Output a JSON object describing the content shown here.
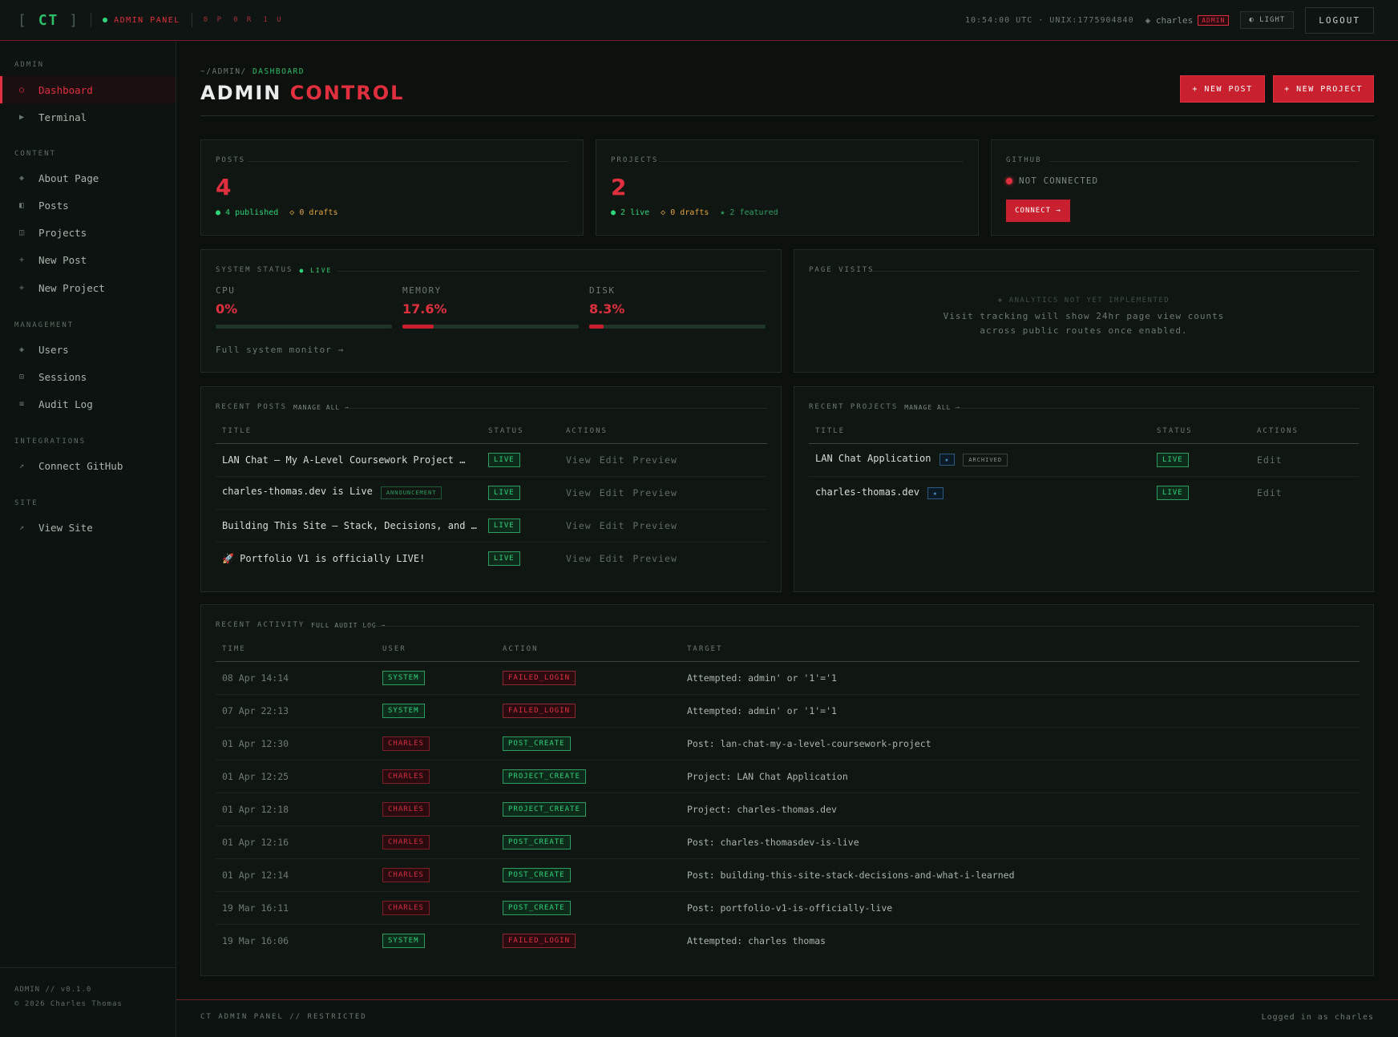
{
  "topbar": {
    "logo_open": "[",
    "logo": "CT",
    "logo_close": "]",
    "admin_panel": "ADMIN PANEL",
    "counts": [
      "0 P",
      "0 R",
      "1 U"
    ],
    "clock": "10:54:00 UTC · UNIX:1775904840",
    "user": "◈ charles",
    "admin_tag": "ADMIN",
    "light_label": "◐ LIGHT",
    "logout_label": "LOGOUT"
  },
  "sidebar": {
    "groups": {
      "admin": "ADMIN",
      "content": "CONTENT",
      "management": "MANAGEMENT",
      "integrations": "INTEGRATIONS",
      "site": "SITE"
    },
    "items": {
      "dashboard": "Dashboard",
      "terminal": "Terminal",
      "about": "About Page",
      "posts": "Posts",
      "projects": "Projects",
      "new_post": "New Post",
      "new_project": "New Project",
      "users": "Users",
      "sessions": "Sessions",
      "audit": "Audit Log",
      "github": "Connect GitHub",
      "view_site": "View Site"
    },
    "footer_version": "ADMIN // v0.1.0",
    "footer_copy": "© 2026 Charles Thomas"
  },
  "header": {
    "breadcrumb_prefix": "~/ADMIN/",
    "breadcrumb_current": "DASHBOARD",
    "title_a": "ADMIN",
    "title_b": "CONTROL",
    "new_post": "+ NEW POST",
    "new_project": "+ NEW PROJECT"
  },
  "stats": {
    "posts_label": "POSTS",
    "posts_value": "4",
    "posts_published": "● 4 published",
    "posts_drafts": "◇ 0 drafts",
    "projects_label": "PROJECTS",
    "projects_value": "2",
    "projects_live": "● 2 live",
    "projects_drafts": "◇ 0 drafts",
    "projects_featured": "★ 2 featured",
    "github_label": "GITHUB",
    "github_status": "NOT CONNECTED",
    "github_connect": "CONNECT →"
  },
  "system": {
    "label": "SYSTEM STATUS",
    "live": "● LIVE",
    "cpu_label": "CPU",
    "cpu_value": "0%",
    "cpu_pct": 0,
    "mem_label": "MEMORY",
    "mem_value": "17.6%",
    "mem_pct": 17.6,
    "disk_label": "DISK",
    "disk_value": "8.3%",
    "disk_pct": 8.3,
    "monitor_link": "Full system monitor →"
  },
  "visits": {
    "label": "PAGE VISITS",
    "line1": "◈ ANALYTICS NOT YET IMPLEMENTED",
    "line2": "Visit tracking will show 24hr page view counts",
    "line3": "across public routes once enabled."
  },
  "recent_posts": {
    "label": "RECENT POSTS",
    "manage": "MANAGE ALL →",
    "headers": [
      "TITLE",
      "STATUS",
      "ACTIONS"
    ],
    "rows": [
      {
        "title": "LAN Chat — My A-Level Coursework Project …",
        "badge": "",
        "status": "LIVE"
      },
      {
        "title": "charles-thomas.dev is Live",
        "badge": "ANNOUNCEMENT",
        "status": "LIVE"
      },
      {
        "title": "Building This Site — Stack, Decisions, and …",
        "badge": "",
        "status": "LIVE"
      },
      {
        "title": "🚀 Portfolio V1 is officially LIVE!",
        "badge": "",
        "status": "LIVE"
      }
    ],
    "actions": [
      "View",
      "Edit",
      "Preview"
    ]
  },
  "recent_projects": {
    "label": "RECENT PROJECTS",
    "manage": "MANAGE ALL →",
    "headers": [
      "TITLE",
      "STATUS",
      "ACTIONS"
    ],
    "rows": [
      {
        "title": "LAN Chat Application",
        "star": "★",
        "badge": "ARCHIVED",
        "status": "LIVE",
        "action": "Edit"
      },
      {
        "title": "charles-thomas.dev",
        "star": "★",
        "badge": "",
        "status": "LIVE",
        "action": "Edit"
      }
    ]
  },
  "activity": {
    "label": "RECENT ACTIVITY",
    "link": "FULL AUDIT LOG →",
    "headers": [
      "TIME",
      "USER",
      "ACTION",
      "TARGET"
    ],
    "rows": [
      {
        "time": "08 Apr 14:14",
        "user": "SYSTEM",
        "action": "FAILED_LOGIN",
        "target": "Attempted: admin' or '1'='1"
      },
      {
        "time": "07 Apr 22:13",
        "user": "SYSTEM",
        "action": "FAILED_LOGIN",
        "target": "Attempted: admin' or '1'='1"
      },
      {
        "time": "01 Apr 12:30",
        "user": "CHARLES",
        "action": "POST_CREATE",
        "target": "Post: lan-chat-my-a-level-coursework-project"
      },
      {
        "time": "01 Apr 12:25",
        "user": "CHARLES",
        "action": "PROJECT_CREATE",
        "target": "Project: LAN Chat Application"
      },
      {
        "time": "01 Apr 12:18",
        "user": "CHARLES",
        "action": "PROJECT_CREATE",
        "target": "Project: charles-thomas.dev"
      },
      {
        "time": "01 Apr 12:16",
        "user": "CHARLES",
        "action": "POST_CREATE",
        "target": "Post: charles-thomasdev-is-live"
      },
      {
        "time": "01 Apr 12:14",
        "user": "CHARLES",
        "action": "POST_CREATE",
        "target": "Post: building-this-site-stack-decisions-and-what-i-learned"
      },
      {
        "time": "19 Mar 16:11",
        "user": "CHARLES",
        "action": "POST_CREATE",
        "target": "Post: portfolio-v1-is-officially-live"
      },
      {
        "time": "19 Mar 16:06",
        "user": "SYSTEM",
        "action": "FAILED_LOGIN",
        "target": "Attempted: charles thomas"
      }
    ]
  },
  "footer": {
    "left": "CT ADMIN PANEL // RESTRICTED",
    "right": "Logged in as charles"
  }
}
